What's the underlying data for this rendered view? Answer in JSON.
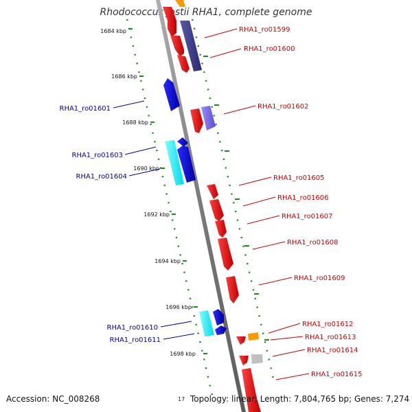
{
  "title": "Rhodococcus jostii RHA1, complete genome",
  "footer": {
    "accession": "Accession: NC_008268",
    "topology": "Topology: linear; Length: 7,804,765 bp; Genes: 7,274",
    "stray_number": "17"
  },
  "colors": {
    "backbone": "#8a8a8a",
    "tick": "#1a8a1a",
    "gene_red": "#ff0000",
    "gene_blue": "#0000e0",
    "gene_cyan": "#00ffff",
    "gene_navy": "#3c3c8c",
    "gene_lavender": "#7b68ee",
    "gene_orange": "#ff9900",
    "gene_grey": "#c0c0c0",
    "label_right": "#cc0000",
    "label_left": "#0000aa"
  },
  "kbp_labels": [
    "1684 kbp",
    "1686 kbp",
    "1688 kbp",
    "1690 kbp",
    "1692 kbp",
    "1694 kbp",
    "1696 kbp",
    "1698 kbp"
  ],
  "genes_right": [
    {
      "label": "RHA1_ro01599"
    },
    {
      "label": "RHA1_ro01600"
    },
    {
      "label": "RHA1_ro01602"
    },
    {
      "label": "RHA1_ro01605"
    },
    {
      "label": "RHA1_ro01606"
    },
    {
      "label": "RHA1_ro01607"
    },
    {
      "label": "RHA1_ro01608"
    },
    {
      "label": "RHA1_ro01609"
    },
    {
      "label": "RHA1_ro01612"
    },
    {
      "label": "RHA1_ro01613"
    },
    {
      "label": "RHA1_ro01614"
    },
    {
      "label": "RHA1_ro01615"
    }
  ],
  "genes_left": [
    {
      "label": "RHA1_ro01601"
    },
    {
      "label": "RHA1_ro01603"
    },
    {
      "label": "RHA1_ro01604"
    },
    {
      "label": "RHA1_ro01610"
    },
    {
      "label": "RHA1_ro01611"
    }
  ]
}
